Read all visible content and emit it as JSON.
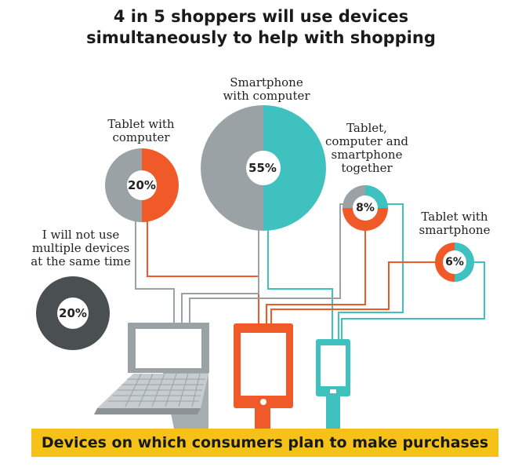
{
  "title": {
    "line1": "4 in 5 shoppers will use devices",
    "line2": "simultaneously to help with shopping"
  },
  "colors": {
    "gray": "#9aa2a6",
    "orange": "#f05a28",
    "teal": "#3fc1c0",
    "dark": "#4a4f52",
    "yellow": "#f6c21a"
  },
  "groups": [
    {
      "id": "tablet-computer",
      "label_lines": [
        "Tablet with",
        "computer"
      ],
      "percent_label": "20%"
    },
    {
      "id": "smartphone-computer",
      "label_lines": [
        "Smartphone",
        "with computer"
      ],
      "percent_label": "55%"
    },
    {
      "id": "all-three",
      "label_lines": [
        "Tablet,",
        "computer and",
        "smartphone",
        "together"
      ],
      "percent_label": "8%"
    },
    {
      "id": "tablet-smartphone",
      "label_lines": [
        "Tablet with",
        "smartphone"
      ],
      "percent_label": "6%"
    },
    {
      "id": "no-multiple",
      "label_lines": [
        "I will not use",
        "multiple devices",
        "at the same time"
      ],
      "percent_label": "20%"
    }
  ],
  "chart_data": {
    "type": "pie",
    "title": "4 in 5 shoppers will use devices simultaneously to help with shopping",
    "categories": [
      "Smartphone with computer",
      "Tablet with computer",
      "I will not use multiple devices at the same time",
      "Tablet, computer and smartphone together",
      "Tablet with smartphone"
    ],
    "values": [
      55,
      20,
      20,
      8,
      6
    ]
  },
  "devices": {
    "laptop": "laptop-icon",
    "tablet": "tablet-icon",
    "smartphone": "smartphone-icon"
  },
  "banner": {
    "text": "Devices on which consumers plan to make purchases"
  }
}
